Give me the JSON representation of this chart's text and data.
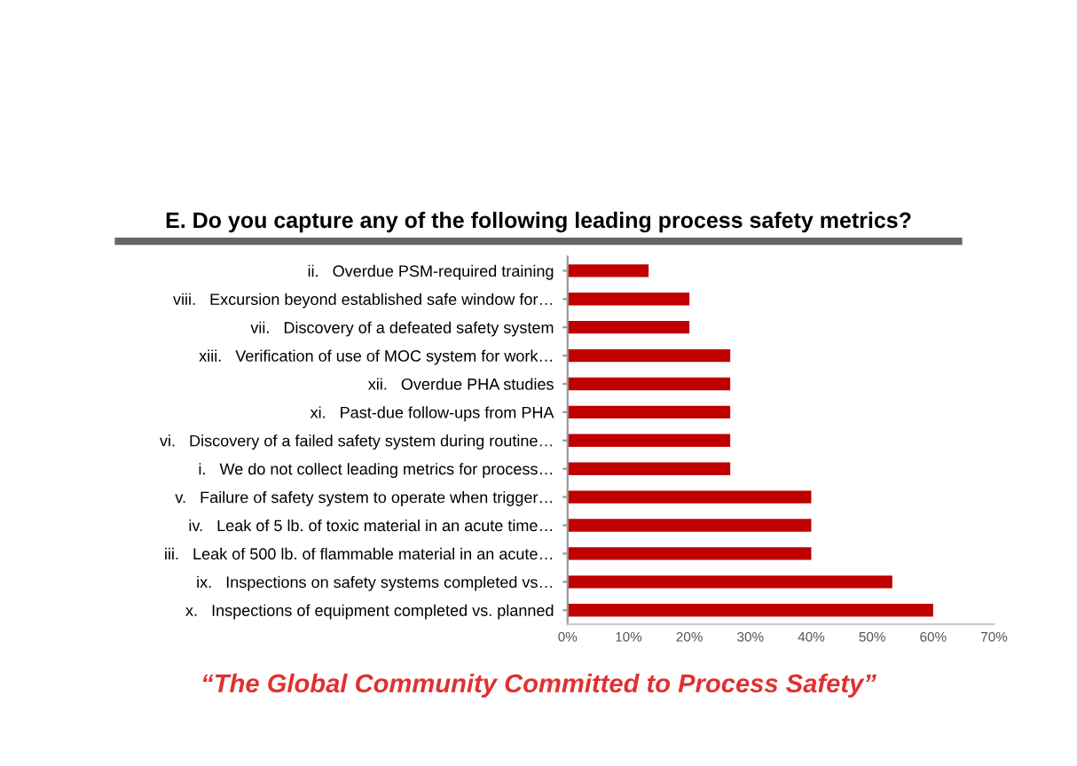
{
  "chart_data": {
    "type": "bar",
    "orientation": "horizontal",
    "title": "E. Do you capture any of the following leading process safety metrics?",
    "categories": [
      "ii.   Overdue PSM-required training",
      "viii.   Excursion beyond established safe window for…",
      "vii.   Discovery of a defeated safety system",
      "xiii.   Verification of use of MOC system for work…",
      "xii.   Overdue PHA studies",
      "xi.   Past-due follow-ups from PHA",
      "vi.   Discovery of a failed safety system during routine…",
      "i.   We do not collect leading metrics for process…",
      "v.   Failure of safety system to operate when trigger…",
      "iv.   Leak of 5 lb. of toxic material in an acute time…",
      "iii.   Leak of 500 lb. of flammable material in an acute…",
      "ix.   Inspections on safety systems completed vs…",
      "x.   Inspections of equipment completed vs. planned"
    ],
    "values": [
      13.3,
      20,
      20,
      26.7,
      26.7,
      26.7,
      26.7,
      26.7,
      40,
      40,
      40,
      53.3,
      60
    ],
    "color": "#c00000",
    "xlim": [
      0,
      70
    ],
    "xticks": [
      {
        "value": 0,
        "label": "0%"
      },
      {
        "value": 10,
        "label": "10%"
      },
      {
        "value": 20,
        "label": "20%"
      },
      {
        "value": 30,
        "label": "30%"
      },
      {
        "value": 40,
        "label": "40%"
      },
      {
        "value": 50,
        "label": "50%"
      },
      {
        "value": 60,
        "label": "60%"
      },
      {
        "value": 70,
        "label": "70%"
      }
    ],
    "grid": false,
    "annotations": [
      "“The Global Community Committed to Process Safety”"
    ]
  }
}
